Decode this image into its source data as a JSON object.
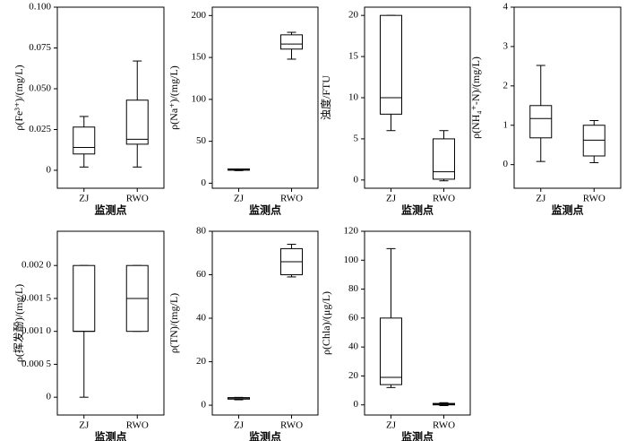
{
  "chart_data": [
    {
      "type": "box",
      "ylabel": "ρ(Fe³⁺)/(mg/L)",
      "xlabel": "监测点",
      "categories": [
        "ZJ",
        "RWO"
      ],
      "low": [
        0.002,
        0.002
      ],
      "q1": [
        0.01,
        0.016
      ],
      "median": [
        0.014,
        0.019
      ],
      "q3": [
        0.0265,
        0.043
      ],
      "high": [
        0.033,
        0.067
      ],
      "ylim": [
        -0.011,
        0.1
      ],
      "yticks": [
        0,
        0.025,
        {
          "value": 0.05,
          "label": "0.050"
        },
        0.075,
        {
          "value": 0.1,
          "label": "0.100"
        }
      ]
    },
    {
      "type": "box",
      "ylabel": "ρ(Na⁺)/(mg/L)",
      "xlabel": "监测点",
      "categories": [
        "ZJ",
        "RWO"
      ],
      "low": [
        15,
        148
      ],
      "q1": [
        15.5,
        160
      ],
      "median": [
        16,
        166
      ],
      "q3": [
        17,
        177
      ],
      "high": [
        17,
        180
      ],
      "ylim": [
        -6,
        210
      ],
      "yticks": [
        0,
        50,
        100,
        150,
        200
      ]
    },
    {
      "type": "box",
      "ylabel": "浊度/FTU",
      "xlabel": "监测点",
      "categories": [
        "ZJ",
        "RWO"
      ],
      "low": [
        6,
        -0.1
      ],
      "q1": [
        8,
        0.1
      ],
      "median": [
        10,
        1
      ],
      "q3": [
        20,
        5
      ],
      "high": [
        20,
        6
      ],
      "ylim": [
        -1,
        21
      ],
      "yticks": [
        0,
        5,
        10,
        15,
        20
      ]
    },
    {
      "type": "box",
      "ylabel": "ρ(NH₄⁺-N)/(mg/L)",
      "xlabel": "监测点",
      "categories": [
        "ZJ",
        "RWO"
      ],
      "low": [
        0.08,
        0.05
      ],
      "q1": [
        0.68,
        0.22
      ],
      "median": [
        1.17,
        0.62
      ],
      "q3": [
        1.5,
        1.0
      ],
      "high": [
        2.52,
        1.12
      ],
      "ylim": [
        -0.6,
        4
      ],
      "yticks": [
        0,
        1,
        2,
        3,
        4
      ]
    },
    {
      "type": "box",
      "ylabel": "ρ(挥发酚)/(mg/L)",
      "xlabel": "监测点",
      "categories": [
        "ZJ",
        "RWO"
      ],
      "low": [
        0,
        0.001
      ],
      "q1": [
        0.001,
        0.001
      ],
      "median": [
        0.001,
        0.0015
      ],
      "q3": [
        0.002,
        0.002
      ],
      "high": [
        0.002,
        0.002
      ],
      "ylim": [
        -0.00027,
        0.00252
      ],
      "yticks": [
        0,
        {
          "value": 0.0005,
          "label": "0.000 5"
        },
        {
          "value": 0.001,
          "label": "0.001 0"
        },
        {
          "value": 0.0015,
          "label": "0.001 5"
        },
        {
          "value": 0.002,
          "label": "0.002 0"
        }
      ]
    },
    {
      "type": "box",
      "ylabel": "ρ(TN)/(mg/L)",
      "xlabel": "监测点",
      "categories": [
        "ZJ",
        "RWO"
      ],
      "low": [
        2.5,
        59
      ],
      "q1": [
        2.8,
        60
      ],
      "median": [
        3,
        66
      ],
      "q3": [
        3.5,
        72
      ],
      "high": [
        3.6,
        74
      ],
      "ylim": [
        -4.5,
        80
      ],
      "yticks": [
        0,
        20,
        40,
        60,
        80
      ]
    },
    {
      "type": "box",
      "ylabel": "ρ(Chla)/(μg/L)",
      "xlabel": "监测点",
      "categories": [
        "ZJ",
        "RWO"
      ],
      "low": [
        12,
        -0.5
      ],
      "q1": [
        14,
        0
      ],
      "median": [
        19,
        0.5
      ],
      "q3": [
        60,
        1
      ],
      "high": [
        108,
        1.5
      ],
      "ylim": [
        -7,
        120
      ],
      "yticks": [
        0,
        20,
        40,
        60,
        80,
        100,
        120
      ]
    }
  ]
}
